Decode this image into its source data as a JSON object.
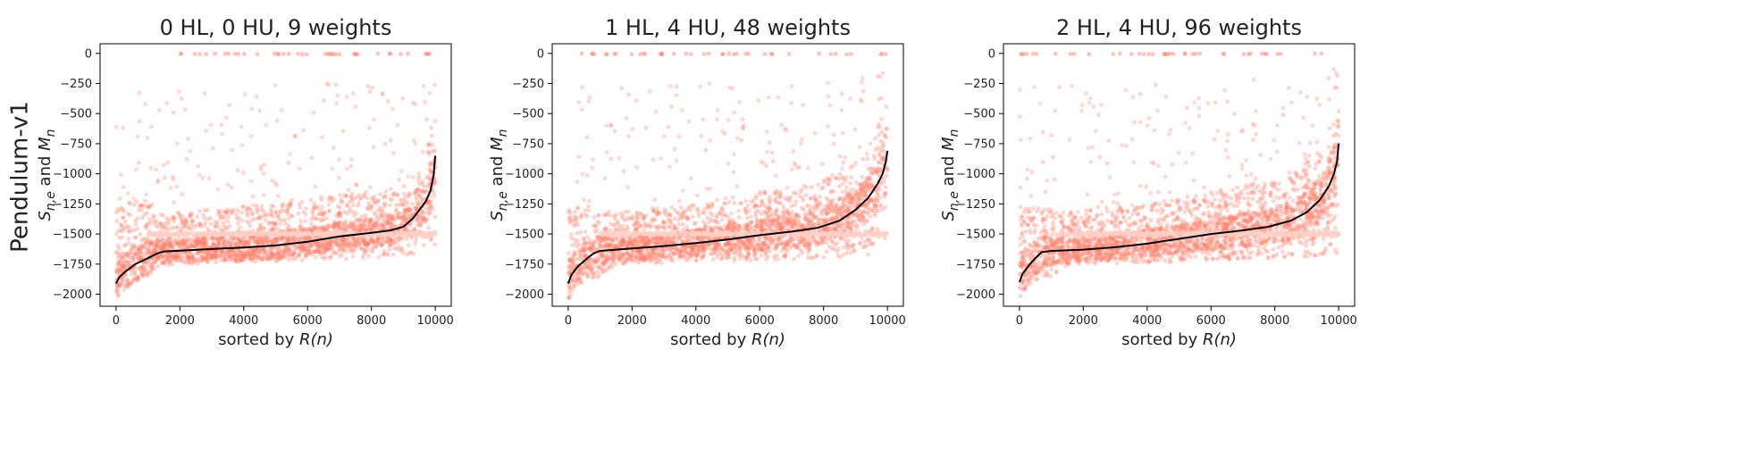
{
  "figure": {
    "row_label": "Pendulum-v1",
    "panel_count": 3
  },
  "chart_data": [
    {
      "type": "scatter",
      "title": "0 HL, 0 HU, 9 weights",
      "xlabel_prefix": "sorted by ",
      "xlabel_math": "R(n)",
      "ylabel_math_1": "S",
      "ylabel_sub_1": "n,e",
      "ylabel_mid": " and ",
      "ylabel_math_2": "M",
      "ylabel_sub_2": "n",
      "xlim": [
        -500,
        10500
      ],
      "ylim": [
        -2100,
        80
      ],
      "xticks": [
        0,
        2000,
        4000,
        6000,
        8000,
        10000
      ],
      "yticks": [
        0,
        -250,
        -500,
        -750,
        -1000,
        -1250,
        -1500,
        -1750,
        -2000
      ],
      "scatter_color": "#ff7f6a",
      "line_color": "#000000",
      "series": [
        {
          "kind": "mean_line",
          "x": [
            0,
            100,
            300,
            600,
            1000,
            1300,
            1500,
            2000,
            3000,
            4000,
            5000,
            6000,
            7000,
            8000,
            8600,
            9000,
            9300,
            9500,
            9700,
            9850,
            9950,
            10000
          ],
          "y": [
            -1910,
            -1860,
            -1810,
            -1750,
            -1700,
            -1660,
            -1645,
            -1638,
            -1625,
            -1612,
            -1595,
            -1565,
            -1520,
            -1490,
            -1470,
            -1440,
            -1370,
            -1300,
            -1230,
            -1140,
            -1010,
            -850
          ]
        },
        {
          "kind": "samples_band",
          "x": [
            0,
            500,
            1000,
            1500,
            2000,
            4000,
            6000,
            8000,
            9000,
            9500,
            10000
          ],
          "lower": [
            -1980,
            -1920,
            -1860,
            -1760,
            -1750,
            -1740,
            -1720,
            -1700,
            -1680,
            -1660,
            -1600
          ],
          "upper": [
            -1250,
            -1230,
            -1220,
            -1350,
            -1320,
            -1270,
            -1200,
            -1150,
            -1100,
            -950,
            -500
          ]
        }
      ]
    },
    {
      "type": "scatter",
      "title": "1 HL, 4 HU, 48 weights",
      "xlabel_prefix": "sorted by ",
      "xlabel_math": "R(n)",
      "ylabel_math_1": "S",
      "ylabel_sub_1": "n,e",
      "ylabel_mid": " and ",
      "ylabel_math_2": "M",
      "ylabel_sub_2": "n",
      "xlim": [
        -500,
        10500
      ],
      "ylim": [
        -2100,
        80
      ],
      "xticks": [
        0,
        2000,
        4000,
        6000,
        8000,
        10000
      ],
      "yticks": [
        0,
        -250,
        -500,
        -750,
        -1000,
        -1250,
        -1500,
        -1750,
        -2000
      ],
      "scatter_color": "#ff7f6a",
      "line_color": "#000000",
      "series": [
        {
          "kind": "mean_line",
          "x": [
            0,
            100,
            300,
            600,
            800,
            1000,
            2000,
            3000,
            4000,
            5000,
            6000,
            7000,
            7800,
            8500,
            9000,
            9400,
            9700,
            9850,
            9950,
            10000
          ],
          "y": [
            -1910,
            -1840,
            -1770,
            -1700,
            -1660,
            -1640,
            -1620,
            -1600,
            -1575,
            -1545,
            -1510,
            -1480,
            -1450,
            -1390,
            -1300,
            -1200,
            -1080,
            -1000,
            -900,
            -810
          ]
        },
        {
          "kind": "samples_band",
          "x": [
            0,
            500,
            1000,
            1500,
            2000,
            4000,
            6000,
            8000,
            9000,
            9500,
            10000
          ],
          "lower": [
            -1980,
            -1920,
            -1850,
            -1760,
            -1750,
            -1740,
            -1720,
            -1700,
            -1690,
            -1680,
            -1660
          ],
          "upper": [
            -1300,
            -1250,
            -1300,
            -1330,
            -1300,
            -1250,
            -1150,
            -1050,
            -900,
            -800,
            -400
          ]
        }
      ]
    },
    {
      "type": "scatter",
      "title": "2 HL, 4 HU, 96 weights",
      "xlabel_prefix": "sorted by ",
      "xlabel_math": "R(n)",
      "ylabel_math_1": "S",
      "ylabel_sub_1": "n,e",
      "ylabel_mid": " and ",
      "ylabel_math_2": "M",
      "ylabel_sub_2": "n",
      "xlim": [
        -500,
        10500
      ],
      "ylim": [
        -2100,
        80
      ],
      "xticks": [
        0,
        2000,
        4000,
        6000,
        8000,
        10000
      ],
      "yticks": [
        0,
        -250,
        -500,
        -750,
        -1000,
        -1250,
        -1500,
        -1750,
        -2000
      ],
      "scatter_color": "#ff7f6a",
      "line_color": "#000000",
      "series": [
        {
          "kind": "mean_line",
          "x": [
            0,
            100,
            300,
            500,
            700,
            1000,
            2000,
            3000,
            4000,
            5000,
            6000,
            7000,
            7800,
            8500,
            9000,
            9400,
            9700,
            9850,
            9950,
            10000
          ],
          "y": [
            -1900,
            -1830,
            -1760,
            -1700,
            -1650,
            -1640,
            -1630,
            -1610,
            -1580,
            -1540,
            -1500,
            -1470,
            -1440,
            -1390,
            -1320,
            -1220,
            -1100,
            -1000,
            -900,
            -750
          ]
        },
        {
          "kind": "samples_band",
          "x": [
            0,
            500,
            1000,
            1500,
            2000,
            4000,
            6000,
            8000,
            9000,
            9500,
            10000
          ],
          "lower": [
            -1980,
            -1920,
            -1850,
            -1760,
            -1750,
            -1740,
            -1720,
            -1700,
            -1690,
            -1680,
            -1660
          ],
          "upper": [
            -1300,
            -1250,
            -1300,
            -1320,
            -1300,
            -1250,
            -1150,
            -1050,
            -900,
            -780,
            -400
          ]
        }
      ]
    }
  ]
}
